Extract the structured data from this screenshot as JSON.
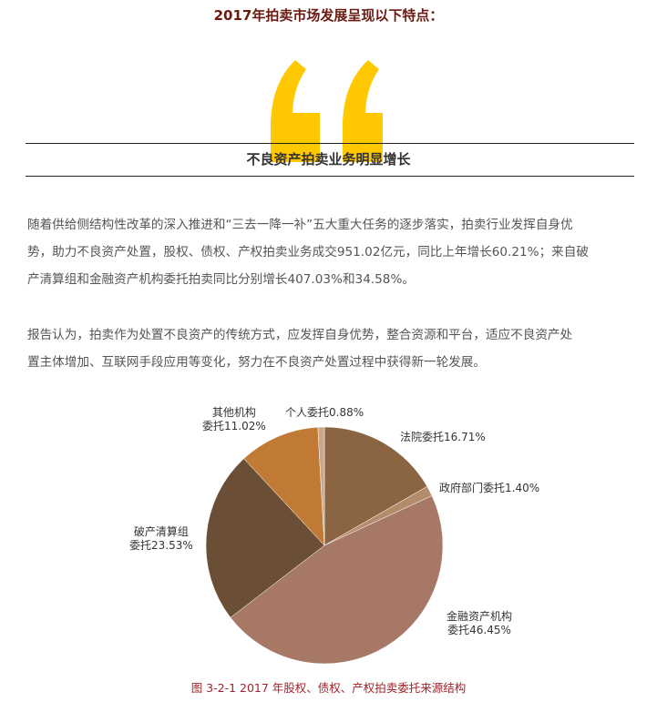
{
  "heading": "2017年拍卖市场发展呈现以下特点：",
  "quote_color": "#ffc800",
  "subtitle": "不良资产拍卖业务明显增长",
  "paragraphs": [
    [
      "随着供给侧结构性改革的深入推进和“三去一降一补”五大重大任务的逐步落实，拍卖行业发挥自身优",
      "势，助力不良资产处置，股权、债权、产权拍卖业务成交951.02亿元，同比上年增长60.21%；来自破",
      "产清算组和金融资产机构委托拍卖同比分别增长407.03%和34.58%。"
    ],
    [
      "报告认为，拍卖作为处置不良资产的传统方式，应发挥自身优势，整合资源和平台，适应不良资产处",
      "置主体增加、互联网手段应用等变化，努力在不良资产处置过程中获得新一轮发展。"
    ]
  ],
  "chart_data": {
    "type": "pie",
    "title": "图 3-2-1  2017 年股权、债权、产权拍卖委托来源结构",
    "slices": [
      {
        "label": "法院委托16.71%",
        "value": 16.71,
        "color": "#8b6442"
      },
      {
        "label": "政府部门委托1.40%",
        "value": 1.4,
        "color": "#b48c6c"
      },
      {
        "label": "金融资产机构委托46.45%",
        "value": 46.45,
        "color": "#a87866"
      },
      {
        "label": "破产清算组委托23.53%",
        "value": 23.53,
        "color": "#6a4e36"
      },
      {
        "label": "其他机构委托11.02%",
        "value": 11.02,
        "color": "#c07a36"
      },
      {
        "label": "个人委托0.88%",
        "value": 0.88,
        "color": "#cba88c"
      }
    ],
    "label_lines": {
      "court": [
        "法院委托16.71%"
      ],
      "gov": [
        "政府部门委托1.40%"
      ],
      "finance": [
        "金融资产机构",
        "委托46.45%"
      ],
      "bankrupt": [
        "破产清算组",
        "委托23.53%"
      ],
      "other": [
        "其他机构",
        "委托11.02%"
      ],
      "personal": [
        "个人委托0.88%"
      ]
    }
  }
}
